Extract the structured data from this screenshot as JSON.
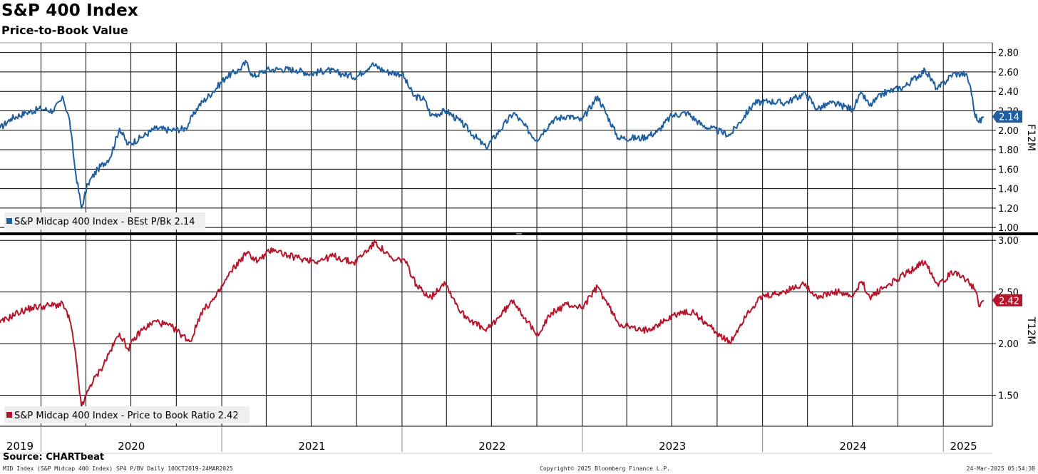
{
  "header": {
    "title": "S&P 400 Index",
    "subtitle": "Price-to-Book Value"
  },
  "footer": {
    "source": "Source: CHARTbeat",
    "left_text": "MID Index (S&P Midcap 400 Index) SP4 P/BV  Daily 10OCT2019-24MAR2025",
    "center_text": "Copyright© 2025 Bloomberg Finance L.P.",
    "right_text": "24-Mar-2025 05:54:38"
  },
  "x_axis": {
    "years": [
      "2019",
      "2020",
      "2021",
      "2022",
      "2023",
      "2024",
      "2025"
    ]
  },
  "chart_data": [
    {
      "type": "line",
      "panel": "top",
      "axis_title": "F12M",
      "legend_label": "S&P Midcap 400 Index - BEst P/Bk 2.14",
      "legend_position": "bottom-left",
      "last_value_label": "2.14",
      "color": "#1f5fa0",
      "ylim": [
        0.95,
        2.9
      ],
      "yticks": [
        "1.00",
        "1.20",
        "1.40",
        "1.60",
        "1.80",
        "2.00",
        "2.20",
        "2.40",
        "2.60",
        "2.80"
      ],
      "grid": true,
      "x_range": [
        "2019-10-10",
        "2025-03-24"
      ],
      "points": [
        [
          "2019-10-10",
          2.02
        ],
        [
          "2019-11-01",
          2.12
        ],
        [
          "2019-12-01",
          2.18
        ],
        [
          "2020-01-01",
          2.22
        ],
        [
          "2020-01-25",
          2.2
        ],
        [
          "2020-02-15",
          2.33
        ],
        [
          "2020-02-28",
          2.1
        ],
        [
          "2020-03-10",
          1.6
        ],
        [
          "2020-03-23",
          1.2
        ],
        [
          "2020-04-05",
          1.45
        ],
        [
          "2020-04-25",
          1.6
        ],
        [
          "2020-05-20",
          1.72
        ],
        [
          "2020-06-08",
          2.02
        ],
        [
          "2020-06-25",
          1.85
        ],
        [
          "2020-07-20",
          1.92
        ],
        [
          "2020-08-20",
          2.02
        ],
        [
          "2020-09-20",
          2.0
        ],
        [
          "2020-10-20",
          2.02
        ],
        [
          "2020-11-15",
          2.25
        ],
        [
          "2020-12-15",
          2.4
        ],
        [
          "2021-01-10",
          2.55
        ],
        [
          "2021-02-05",
          2.62
        ],
        [
          "2021-02-20",
          2.7
        ],
        [
          "2021-03-05",
          2.55
        ],
        [
          "2021-04-01",
          2.62
        ],
        [
          "2021-05-01",
          2.63
        ],
        [
          "2021-06-01",
          2.62
        ],
        [
          "2021-07-01",
          2.58
        ],
        [
          "2021-08-01",
          2.62
        ],
        [
          "2021-09-01",
          2.58
        ],
        [
          "2021-10-01",
          2.55
        ],
        [
          "2021-11-01",
          2.68
        ],
        [
          "2021-12-01",
          2.6
        ],
        [
          "2022-01-01",
          2.58
        ],
        [
          "2022-01-25",
          2.35
        ],
        [
          "2022-02-15",
          2.32
        ],
        [
          "2022-03-01",
          2.15
        ],
        [
          "2022-04-01",
          2.2
        ],
        [
          "2022-05-01",
          2.08
        ],
        [
          "2022-06-20",
          1.82
        ],
        [
          "2022-08-15",
          2.18
        ],
        [
          "2022-09-30",
          1.9
        ],
        [
          "2022-11-01",
          2.1
        ],
        [
          "2022-12-01",
          2.15
        ],
        [
          "2022-12-31",
          2.1
        ],
        [
          "2023-02-01",
          2.35
        ],
        [
          "2023-03-15",
          1.92
        ],
        [
          "2023-05-01",
          1.92
        ],
        [
          "2023-06-01",
          1.98
        ],
        [
          "2023-07-01",
          2.15
        ],
        [
          "2023-08-01",
          2.18
        ],
        [
          "2023-09-01",
          2.05
        ],
        [
          "2023-10-27",
          1.95
        ],
        [
          "2023-12-15",
          2.28
        ],
        [
          "2024-01-15",
          2.3
        ],
        [
          "2024-02-15",
          2.28
        ],
        [
          "2024-03-28",
          2.38
        ],
        [
          "2024-04-20",
          2.22
        ],
        [
          "2024-05-20",
          2.28
        ],
        [
          "2024-07-01",
          2.22
        ],
        [
          "2024-07-20",
          2.38
        ],
        [
          "2024-08-05",
          2.25
        ],
        [
          "2024-09-01",
          2.38
        ],
        [
          "2024-10-15",
          2.45
        ],
        [
          "2024-11-25",
          2.62
        ],
        [
          "2024-12-20",
          2.42
        ],
        [
          "2025-01-20",
          2.58
        ],
        [
          "2025-02-15",
          2.58
        ],
        [
          "2025-02-25",
          2.45
        ],
        [
          "2025-03-05",
          2.18
        ],
        [
          "2025-03-14",
          2.08
        ],
        [
          "2025-03-24",
          2.14
        ]
      ]
    },
    {
      "type": "line",
      "panel": "bottom",
      "axis_title": "T12M",
      "legend_label": "S&P Midcap 400 Index - Price to Book Ratio 2.42",
      "legend_position": "bottom-left",
      "last_value_label": "2.42",
      "color": "#b5162b",
      "ylim": [
        1.2,
        3.05
      ],
      "yticks": [
        "1.50",
        "2.00",
        "2.50",
        "3.00"
      ],
      "grid": true,
      "x_range": [
        "2019-10-10",
        "2025-03-24"
      ],
      "points": [
        [
          "2019-10-10",
          2.2
        ],
        [
          "2019-11-15",
          2.3
        ],
        [
          "2019-12-15",
          2.35
        ],
        [
          "2020-01-20",
          2.37
        ],
        [
          "2020-02-15",
          2.38
        ],
        [
          "2020-03-01",
          2.2
        ],
        [
          "2020-03-12",
          1.85
        ],
        [
          "2020-03-23",
          1.38
        ],
        [
          "2020-04-10",
          1.6
        ],
        [
          "2020-05-01",
          1.75
        ],
        [
          "2020-06-08",
          2.1
        ],
        [
          "2020-06-25",
          1.95
        ],
        [
          "2020-07-20",
          2.12
        ],
        [
          "2020-08-20",
          2.22
        ],
        [
          "2020-09-25",
          2.15
        ],
        [
          "2020-10-30",
          2.02
        ],
        [
          "2020-11-20",
          2.3
        ],
        [
          "2020-12-20",
          2.45
        ],
        [
          "2021-01-20",
          2.7
        ],
        [
          "2021-02-20",
          2.88
        ],
        [
          "2021-03-15",
          2.8
        ],
        [
          "2021-04-15",
          2.92
        ],
        [
          "2021-05-15",
          2.85
        ],
        [
          "2021-06-15",
          2.82
        ],
        [
          "2021-07-15",
          2.8
        ],
        [
          "2021-08-15",
          2.85
        ],
        [
          "2021-09-25",
          2.78
        ],
        [
          "2021-11-08",
          2.98
        ],
        [
          "2021-12-15",
          2.8
        ],
        [
          "2022-01-05",
          2.82
        ],
        [
          "2022-02-01",
          2.55
        ],
        [
          "2022-03-01",
          2.45
        ],
        [
          "2022-03-28",
          2.6
        ],
        [
          "2022-05-01",
          2.3
        ],
        [
          "2022-06-20",
          2.12
        ],
        [
          "2022-08-15",
          2.42
        ],
        [
          "2022-09-30",
          2.08
        ],
        [
          "2022-11-01",
          2.3
        ],
        [
          "2022-12-01",
          2.38
        ],
        [
          "2023-01-01",
          2.35
        ],
        [
          "2023-02-01",
          2.55
        ],
        [
          "2023-03-15",
          2.2
        ],
        [
          "2023-05-01",
          2.12
        ],
        [
          "2023-06-01",
          2.18
        ],
        [
          "2023-07-15",
          2.3
        ],
        [
          "2023-08-15",
          2.3
        ],
        [
          "2023-10-27",
          2.0
        ],
        [
          "2023-12-01",
          2.3
        ],
        [
          "2023-12-31",
          2.45
        ],
        [
          "2024-02-01",
          2.48
        ],
        [
          "2024-03-28",
          2.58
        ],
        [
          "2024-04-20",
          2.45
        ],
        [
          "2024-06-01",
          2.5
        ],
        [
          "2024-07-01",
          2.45
        ],
        [
          "2024-07-20",
          2.6
        ],
        [
          "2024-08-05",
          2.45
        ],
        [
          "2024-09-15",
          2.58
        ],
        [
          "2024-11-25",
          2.8
        ],
        [
          "2024-12-20",
          2.58
        ],
        [
          "2025-01-25",
          2.7
        ],
        [
          "2025-02-18",
          2.62
        ],
        [
          "2025-03-08",
          2.5
        ],
        [
          "2025-03-14",
          2.36
        ],
        [
          "2025-03-24",
          2.42
        ]
      ]
    }
  ]
}
